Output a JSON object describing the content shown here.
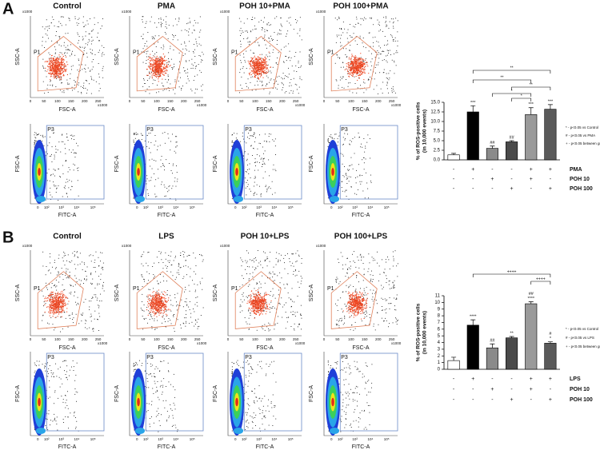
{
  "panel_labels": [
    "A",
    "B"
  ],
  "panels": [
    {
      "titles": [
        "Control",
        "PMA",
        "POH 10+PMA",
        "POH 100+PMA"
      ]
    },
    {
      "titles": [
        "Control",
        "LPS",
        "POH 10+LPS",
        "POH 100+LPS"
      ]
    }
  ],
  "flow_axes": {
    "ssc": "SSC-A",
    "fsc": "FSC-A",
    "fitc": "FITC-A",
    "p1": "P1",
    "p3": "P3",
    "scale": "x1000",
    "linear_ticks": [
      "0",
      "50",
      "100",
      "150",
      "200",
      "250"
    ],
    "log_ticks": [
      "0",
      "10²",
      "10³",
      "10⁴",
      "10⁵"
    ]
  },
  "chart_data": [
    {
      "type": "bar",
      "ylabel": [
        "% of ROS-positive cells",
        "(in 10,000 events)"
      ],
      "categories": [
        null,
        null,
        null,
        null,
        null,
        null
      ],
      "values": [
        1.3,
        12.5,
        3.0,
        4.7,
        11.8,
        13.2
      ],
      "errors": [
        0.4,
        1.6,
        0.6,
        0.3,
        1.8,
        1.2
      ],
      "colors": [
        "#ffffff",
        "#000000",
        "#8a8a8a",
        "#4a4a4a",
        "#9a9a9a",
        "#5a5a5a"
      ],
      "ylim": [
        0,
        15
      ],
      "yticks": [
        {
          "value": 0,
          "label": "0.0"
        },
        2.5,
        {
          "value": 5,
          "label": "5.0"
        },
        7.5,
        {
          "value": 10,
          "label": "10.0"
        },
        12.5,
        {
          "value": 15,
          "label": "15.0"
        }
      ],
      "annotations": [
        null,
        "***",
        "##",
        "##",
        "***",
        "***"
      ],
      "brackets": [
        "**",
        "**",
        "**",
        "*",
        "*"
      ],
      "treatments": [
        {
          "name": "PMA",
          "signs": [
            "-",
            "+",
            "-",
            "-",
            "+",
            "+"
          ]
        },
        {
          "name": "POH 10",
          "signs": [
            "-",
            "-",
            "+",
            "-",
            "+",
            "-"
          ]
        },
        {
          "name": "POH 100",
          "signs": [
            "-",
            "-",
            "-",
            "+",
            "-",
            "+"
          ]
        }
      ],
      "notes": [
        "* - p<0.05 vs Control",
        "# - p<0.05 vs PMA",
        "+ - p<0.05 between groups"
      ]
    },
    {
      "type": "bar",
      "ylabel": [
        "% of ROS-positive cells",
        "(in 10,000 events)"
      ],
      "categories": [
        null,
        null,
        null,
        null,
        null,
        null
      ],
      "values": [
        1.3,
        6.6,
        3.2,
        4.7,
        9.8,
        3.9
      ],
      "errors": [
        0.5,
        0.8,
        0.6,
        0.2,
        0.3,
        0.2
      ],
      "colors": [
        "#ffffff",
        "#000000",
        "#8a8a8a",
        "#4a4a4a",
        "#9a9a9a",
        "#5a5a5a"
      ],
      "ylim": [
        0,
        11
      ],
      "yticks": [
        0,
        1,
        2,
        3,
        4,
        5,
        6,
        7,
        8,
        9,
        10,
        11
      ],
      "annotations": [
        null,
        "****",
        "##",
        "**",
        [
          "##",
          "****"
        ],
        [
          "#",
          "*"
        ]
      ],
      "brackets": [
        "++++",
        "++++"
      ],
      "treatments": [
        {
          "name": "LPS",
          "signs": [
            "-",
            "+",
            "-",
            "-",
            "+",
            "+"
          ]
        },
        {
          "name": "POH 10",
          "signs": [
            "-",
            "-",
            "+",
            "-",
            "+",
            "-"
          ]
        },
        {
          "name": "POH 100",
          "signs": [
            "-",
            "-",
            "-",
            "+",
            "-",
            "+"
          ]
        }
      ],
      "notes": [
        "* - p<0.05 vs Control",
        "# - p<0.05 vs LPS",
        "+ - p<0.05 between groups"
      ]
    }
  ]
}
